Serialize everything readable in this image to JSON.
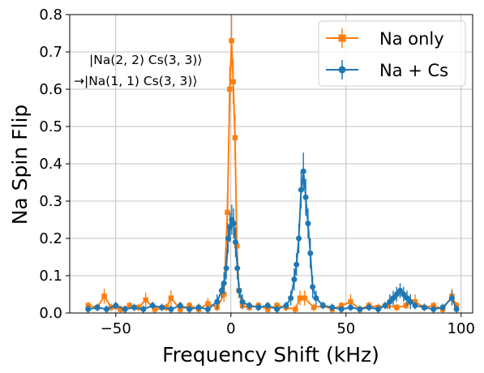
{
  "chart_data": {
    "type": "line",
    "title": "",
    "xlabel": "Frequency Shift (kHz)",
    "ylabel": "Na Spin Flip",
    "xlim": [
      -70,
      105
    ],
    "ylim": [
      0,
      0.8
    ],
    "xticks": [
      -50,
      0,
      50,
      100
    ],
    "xtick_labels": [
      "−50",
      "0",
      "50",
      "100"
    ],
    "yticks": [
      0.0,
      0.1,
      0.2,
      0.3,
      0.4,
      0.5,
      0.6,
      0.7,
      0.8
    ],
    "ytick_labels": [
      "0.0",
      "0.1",
      "0.2",
      "0.3",
      "0.4",
      "0.5",
      "0.6",
      "0.7",
      "0.8"
    ],
    "grid": true,
    "legend_position": "top-right",
    "annotation": [
      "|Na(2, 2) Cs(3, 3)⟩",
      "→|Na(1, 1) Cs(3, 3)⟩"
    ],
    "series": [
      {
        "name": "Na only",
        "color": "#ff7f0e",
        "marker": "square",
        "points": [
          [
            -62,
            0.02,
            0.01
          ],
          [
            -58,
            0.015,
            0.01
          ],
          [
            -55,
            0.045,
            0.02
          ],
          [
            -52,
            0.015,
            0.01
          ],
          [
            -48,
            0.01,
            0.01
          ],
          [
            -44,
            0.02,
            0.01
          ],
          [
            -40,
            0.015,
            0.01
          ],
          [
            -37,
            0.035,
            0.02
          ],
          [
            -33,
            0.01,
            0.01
          ],
          [
            -28,
            0.015,
            0.01
          ],
          [
            -26,
            0.04,
            0.02
          ],
          [
            -22,
            0.01,
            0.01
          ],
          [
            -18,
            0.02,
            0.01
          ],
          [
            -14,
            0.01,
            0.01
          ],
          [
            -10,
            0.025,
            0.015
          ],
          [
            -6,
            0.015,
            0.01
          ],
          [
            -3,
            0.05,
            0.02
          ],
          [
            -1.5,
            0.27,
            0.05
          ],
          [
            -0.5,
            0.6,
            0.06
          ],
          [
            0.3,
            0.73,
            0.07
          ],
          [
            1,
            0.62,
            0.06
          ],
          [
            1.8,
            0.47,
            0.06
          ],
          [
            2.6,
            0.18,
            0.04
          ],
          [
            3.5,
            0.06,
            0.02
          ],
          [
            5,
            0.02,
            0.01
          ],
          [
            8,
            0.015,
            0.01
          ],
          [
            12,
            0.02,
            0.01
          ],
          [
            16,
            0.01,
            0.01
          ],
          [
            20,
            0.02,
            0.01
          ],
          [
            24,
            0.015,
            0.01
          ],
          [
            28,
            0.01,
            0.01
          ],
          [
            30,
            0.04,
            0.02
          ],
          [
            32,
            0.04,
            0.02
          ],
          [
            36,
            0.015,
            0.01
          ],
          [
            40,
            0.02,
            0.01
          ],
          [
            44,
            0.01,
            0.01
          ],
          [
            48,
            0.02,
            0.01
          ],
          [
            52,
            0.03,
            0.02
          ],
          [
            56,
            0.01,
            0.01
          ],
          [
            60,
            0.02,
            0.01
          ],
          [
            64,
            0.015,
            0.01
          ],
          [
            68,
            0.02,
            0.01
          ],
          [
            72,
            0.015,
            0.01
          ],
          [
            76,
            0.02,
            0.01
          ],
          [
            80,
            0.03,
            0.02
          ],
          [
            84,
            0.015,
            0.01
          ],
          [
            88,
            0.02,
            0.01
          ],
          [
            92,
            0.01,
            0.01
          ],
          [
            96,
            0.045,
            0.02
          ],
          [
            98,
            0.02,
            0.01
          ]
        ]
      },
      {
        "name": "Na + Cs",
        "color": "#1f77b4",
        "marker": "circle",
        "points": [
          [
            -62,
            0.01,
            0.01
          ],
          [
            -58,
            0.015,
            0.01
          ],
          [
            -54,
            0.01,
            0.01
          ],
          [
            -50,
            0.02,
            0.01
          ],
          [
            -46,
            0.01,
            0.01
          ],
          [
            -42,
            0.015,
            0.01
          ],
          [
            -38,
            0.01,
            0.01
          ],
          [
            -34,
            0.02,
            0.01
          ],
          [
            -30,
            0.015,
            0.01
          ],
          [
            -26,
            0.01,
            0.01
          ],
          [
            -22,
            0.02,
            0.01
          ],
          [
            -18,
            0.01,
            0.01
          ],
          [
            -14,
            0.015,
            0.01
          ],
          [
            -10,
            0.01,
            0.01
          ],
          [
            -6,
            0.03,
            0.02
          ],
          [
            -4,
            0.06,
            0.02
          ],
          [
            -3,
            0.08,
            0.03
          ],
          [
            -2,
            0.12,
            0.03
          ],
          [
            -1.2,
            0.2,
            0.04
          ],
          [
            -0.4,
            0.23,
            0.04
          ],
          [
            0.4,
            0.25,
            0.04
          ],
          [
            1.2,
            0.24,
            0.04
          ],
          [
            2,
            0.19,
            0.04
          ],
          [
            2.8,
            0.12,
            0.03
          ],
          [
            3.6,
            0.06,
            0.02
          ],
          [
            5,
            0.03,
            0.02
          ],
          [
            8,
            0.02,
            0.01
          ],
          [
            12,
            0.015,
            0.01
          ],
          [
            16,
            0.02,
            0.01
          ],
          [
            20,
            0.01,
            0.01
          ],
          [
            24,
            0.02,
            0.01
          ],
          [
            26,
            0.04,
            0.02
          ],
          [
            27.5,
            0.09,
            0.03
          ],
          [
            28.5,
            0.13,
            0.03
          ],
          [
            29.5,
            0.2,
            0.04
          ],
          [
            30.5,
            0.33,
            0.05
          ],
          [
            31.5,
            0.38,
            0.05
          ],
          [
            32.5,
            0.31,
            0.05
          ],
          [
            33.5,
            0.24,
            0.04
          ],
          [
            34.5,
            0.16,
            0.04
          ],
          [
            35.5,
            0.07,
            0.03
          ],
          [
            37,
            0.04,
            0.02
          ],
          [
            40,
            0.02,
            0.01
          ],
          [
            44,
            0.015,
            0.01
          ],
          [
            48,
            0.01,
            0.01
          ],
          [
            52,
            0.015,
            0.01
          ],
          [
            56,
            0.01,
            0.01
          ],
          [
            60,
            0.015,
            0.01
          ],
          [
            64,
            0.01,
            0.01
          ],
          [
            67,
            0.02,
            0.01
          ],
          [
            69,
            0.03,
            0.02
          ],
          [
            70.5,
            0.04,
            0.02
          ],
          [
            72,
            0.05,
            0.02
          ],
          [
            73.5,
            0.06,
            0.02
          ],
          [
            75,
            0.05,
            0.02
          ],
          [
            76.5,
            0.04,
            0.02
          ],
          [
            78,
            0.03,
            0.02
          ],
          [
            80,
            0.02,
            0.01
          ],
          [
            84,
            0.015,
            0.01
          ],
          [
            88,
            0.01,
            0.01
          ],
          [
            92,
            0.015,
            0.01
          ],
          [
            96,
            0.04,
            0.02
          ],
          [
            98,
            0.01,
            0.01
          ]
        ]
      }
    ]
  }
}
